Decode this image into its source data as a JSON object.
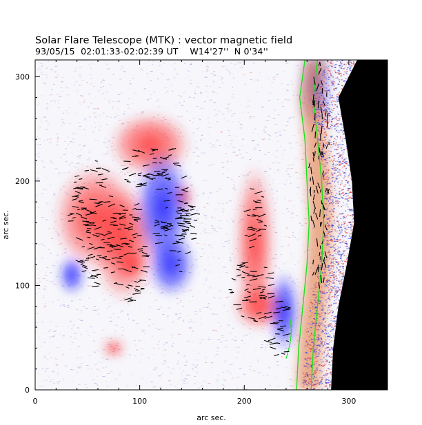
{
  "figure": {
    "title": "Solar Flare Telescope (MTK) : vector magnetic field",
    "subtitle": "93/05/15  02:01:33-02:02:39 UT    W14'27''  N 0'34''",
    "colors": {
      "positive_field": "#ff2a2a",
      "negative_field": "#1a1aff",
      "contour": "#22dd22",
      "background_sky": "#000000",
      "limb_band": "#e07030"
    }
  },
  "chart_data": {
    "type": "image-map",
    "title": "Solar Flare Telescope (MTK) : vector magnetic field",
    "xlabel": "arc sec.",
    "ylabel": "arc sec.",
    "xlim": [
      0,
      337
    ],
    "ylim": [
      0,
      316
    ],
    "x_ticks": [
      0,
      100,
      200,
      300
    ],
    "y_ticks": [
      0,
      100,
      200,
      300
    ],
    "limb": [
      [
        308,
        316
      ],
      [
        290,
        280
      ],
      [
        297,
        240
      ],
      [
        303,
        200
      ],
      [
        305,
        160
      ],
      [
        298,
        120
      ],
      [
        290,
        80
      ],
      [
        285,
        40
      ],
      [
        283,
        0
      ]
    ],
    "regions": [
      {
        "polarity": "positive",
        "name": "west plage",
        "x": 58,
        "y": 165,
        "rx": 40,
        "ry": 50
      },
      {
        "polarity": "positive",
        "name": "central positive",
        "x": 85,
        "y": 140,
        "rx": 30,
        "ry": 55
      },
      {
        "polarity": "positive",
        "name": "core positive",
        "x": 92,
        "y": 120,
        "rx": 12,
        "ry": 12
      },
      {
        "polarity": "positive",
        "name": "north positive",
        "x": 110,
        "y": 235,
        "rx": 38,
        "ry": 30
      },
      {
        "polarity": "positive",
        "name": "small positive",
        "x": 142,
        "y": 185,
        "rx": 8,
        "ry": 12
      },
      {
        "polarity": "positive",
        "name": "east positive",
        "x": 210,
        "y": 140,
        "rx": 18,
        "ry": 75
      },
      {
        "polarity": "positive",
        "name": "south-east positive",
        "x": 215,
        "y": 80,
        "rx": 25,
        "ry": 22
      },
      {
        "polarity": "positive",
        "name": "south positive",
        "x": 75,
        "y": 40,
        "rx": 10,
        "ry": 8
      },
      {
        "polarity": "negative",
        "name": "main negative",
        "x": 122,
        "y": 175,
        "rx": 26,
        "ry": 55
      },
      {
        "polarity": "negative",
        "name": "negative tail",
        "x": 130,
        "y": 120,
        "rx": 22,
        "ry": 30
      },
      {
        "polarity": "negative",
        "name": "south-east negative",
        "x": 238,
        "y": 75,
        "rx": 14,
        "ry": 38
      },
      {
        "polarity": "negative",
        "name": "weak negative",
        "x": 35,
        "y": 110,
        "rx": 12,
        "ry": 18
      }
    ],
    "contour_lines": [
      [
        [
          258,
          316
        ],
        [
          253,
          280
        ],
        [
          258,
          240
        ],
        [
          260,
          200
        ],
        [
          262,
          160
        ],
        [
          260,
          120
        ],
        [
          256,
          80
        ],
        [
          252,
          40
        ],
        [
          250,
          0
        ]
      ],
      [
        [
          270,
          316
        ],
        [
          266,
          280
        ],
        [
          270,
          240
        ],
        [
          274,
          200
        ],
        [
          276,
          160
        ],
        [
          274,
          120
        ],
        [
          270,
          80
        ],
        [
          266,
          40
        ],
        [
          264,
          0
        ]
      ]
    ],
    "vector_clusters": [
      {
        "x": 55,
        "y": 175,
        "rx": 22,
        "ry": 45
      },
      {
        "x": 60,
        "y": 120,
        "rx": 18,
        "ry": 25
      },
      {
        "x": 90,
        "y": 135,
        "rx": 18,
        "ry": 55
      },
      {
        "x": 115,
        "y": 210,
        "rx": 30,
        "ry": 25
      },
      {
        "x": 135,
        "y": 150,
        "rx": 20,
        "ry": 40
      },
      {
        "x": 145,
        "y": 175,
        "rx": 12,
        "ry": 20
      },
      {
        "x": 208,
        "y": 95,
        "rx": 22,
        "ry": 30
      },
      {
        "x": 210,
        "y": 165,
        "rx": 12,
        "ry": 30
      },
      {
        "x": 233,
        "y": 60,
        "rx": 12,
        "ry": 30
      },
      {
        "x": 272,
        "y": 200,
        "rx": 10,
        "ry": 115
      }
    ]
  }
}
